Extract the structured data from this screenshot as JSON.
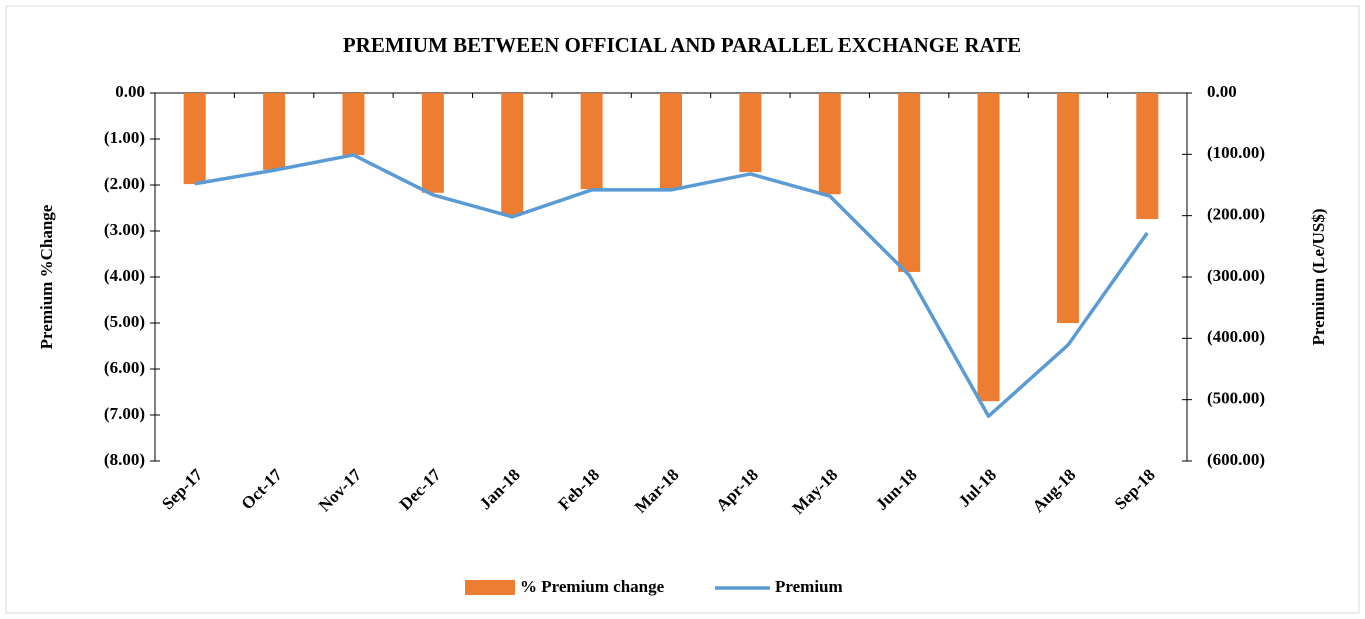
{
  "chart_data": {
    "type": "bar_line",
    "title": "PREMIUM BETWEEN OFFICIAL AND PARALLEL EXCHANGE RATE",
    "y_label": "Premium %Change",
    "y2_label": "Premium (Le/US$)",
    "categories": [
      "Sep-17",
      "Oct-17",
      "Nov-17",
      "Dec-17",
      "Jan-18",
      "Feb-18",
      "Mar-18",
      "Apr-18",
      "May-18",
      "Jun-18",
      "Jul-18",
      "Aug-18",
      "Sep-18"
    ],
    "series": [
      {
        "name": "% Premium change",
        "type": "bar",
        "color": "#ed7d31",
        "values": [
          -1.98,
          -1.67,
          -1.35,
          -2.17,
          -2.65,
          -2.09,
          -2.09,
          -1.72,
          -2.2,
          -3.89,
          -6.7,
          -5.0,
          -2.74
        ]
      },
      {
        "name": "Premium",
        "type": "line",
        "axis": "y2",
        "color": "#5b9bd5",
        "values": [
          -148,
          -126,
          -101,
          -166,
          -202,
          -158,
          -158,
          -132,
          -168,
          -297,
          -527,
          -411,
          -228
        ]
      }
    ],
    "ylim": [
      -8,
      0
    ],
    "yticks": [
      {
        "value": 0,
        "label": "0.00"
      },
      {
        "value": -1,
        "label": "(1.00)"
      },
      {
        "value": -2,
        "label": "(2.00)"
      },
      {
        "value": -3,
        "label": "(3.00)"
      },
      {
        "value": -4,
        "label": "(4.00)"
      },
      {
        "value": -5,
        "label": "(5.00)"
      },
      {
        "value": -6,
        "label": "(6.00)"
      },
      {
        "value": -7,
        "label": "(7.00)"
      },
      {
        "value": -8,
        "label": "(8.00)"
      }
    ],
    "y2lim": [
      -600,
      0
    ],
    "y2ticks": [
      {
        "value": 0,
        "label": "0.00"
      },
      {
        "value": -100,
        "label": "(100.00)"
      },
      {
        "value": -200,
        "label": "(200.00)"
      },
      {
        "value": -300,
        "label": "(300.00)"
      },
      {
        "value": -400,
        "label": "(400.00)"
      },
      {
        "value": -500,
        "label": "(500.00)"
      },
      {
        "value": -600,
        "label": "(600.00)"
      }
    ],
    "legend": "bottom"
  }
}
